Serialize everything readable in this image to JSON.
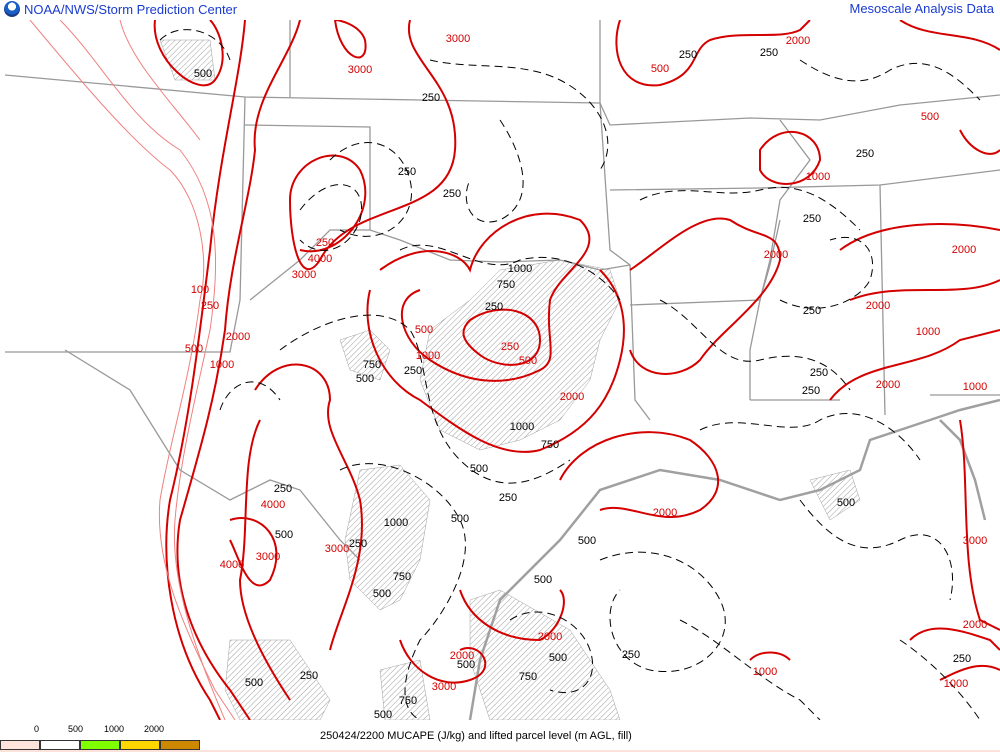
{
  "header": {
    "title_left": "NOAA/NWS/Storm Prediction Center",
    "title_right": "Mesoscale Analysis Data",
    "logo_icon": "noaa-logo"
  },
  "footer": {
    "caption": "250424/2200 MUCAPE (J/kg) and lifted parcel level (m AGL, fill)",
    "legend_labels": [
      "0",
      "500",
      "1000",
      "2000"
    ],
    "legend_colors": [
      "#fce4dc",
      "#ffffff",
      "#80ff00",
      "#ffd700",
      "#cc8800"
    ]
  },
  "colors": {
    "mucape_contour": "#d40000",
    "mucape_low_contour": "#f08080",
    "lpl_contour": "#000000",
    "borders": "#999999",
    "coast": "#a0a0a0",
    "hatch": "#a0a0a0"
  },
  "map": {
    "red_labels": [
      "3000",
      "4000",
      "3000",
      "2000",
      "1000",
      "500",
      "250",
      "100",
      "250",
      "500",
      "1000",
      "2000",
      "4000",
      "3000",
      "4000",
      "3000",
      "1000",
      "500",
      "250",
      "500",
      "2000",
      "2000",
      "2000",
      "2000",
      "1000",
      "2000",
      "1000",
      "2000",
      "3000",
      "2000",
      "3000",
      "2000",
      "1000",
      "3000",
      "2000",
      "1000",
      "500",
      "1000"
    ],
    "black_labels": [
      "500",
      "250",
      "250",
      "250",
      "250",
      "1000",
      "750",
      "250",
      "750",
      "500",
      "250",
      "1000",
      "750",
      "500",
      "250",
      "250",
      "1000",
      "750",
      "500",
      "250",
      "500",
      "500",
      "500",
      "500",
      "750",
      "500",
      "500",
      "500",
      "750",
      "500",
      "250",
      "250",
      "250",
      "250",
      "250",
      "250",
      "500",
      "250",
      "250",
      "250"
    ]
  }
}
